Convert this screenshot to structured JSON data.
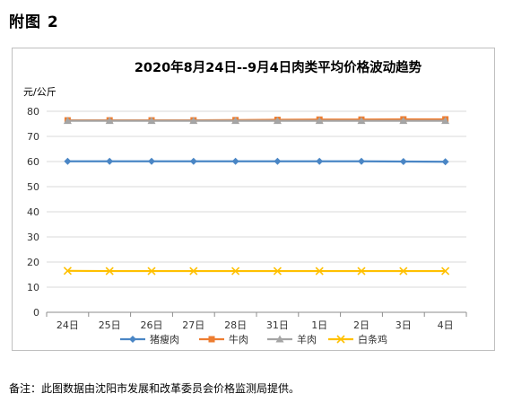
{
  "page": {
    "heading": "附图 2",
    "footnote": "备注：此图数据由沈阳市发展和改革委员会价格监测局提供。"
  },
  "chart_data": {
    "type": "line",
    "title": "2020年8月24日--9月4日肉类平均价格波动趋势",
    "ylabel": "元/公斤",
    "xlabel": "",
    "ylim": [
      0,
      80
    ],
    "yticks": [
      0,
      10,
      20,
      30,
      40,
      50,
      60,
      70,
      80
    ],
    "grid": true,
    "legend_position": "bottom",
    "categories": [
      "24日",
      "25日",
      "26日",
      "27日",
      "28日",
      "31日",
      "1日",
      "2日",
      "3日",
      "4日"
    ],
    "series": [
      {
        "name": "猪瘦肉",
        "color": "#4a86c5",
        "marker": "diamond",
        "values": [
          60.1,
          60.1,
          60.1,
          60.1,
          60.1,
          60.1,
          60.1,
          60.1,
          60.0,
          59.9
        ]
      },
      {
        "name": "牛肉",
        "color": "#ed7d31",
        "marker": "square",
        "values": [
          76.4,
          76.4,
          76.4,
          76.4,
          76.5,
          76.6,
          76.7,
          76.7,
          76.8,
          76.8
        ]
      },
      {
        "name": "羊肉",
        "color": "#a5a5a5",
        "marker": "triangle",
        "values": [
          76.2,
          76.2,
          76.2,
          76.2,
          76.2,
          76.2,
          76.2,
          76.2,
          76.2,
          76.2
        ]
      },
      {
        "name": "白条鸡",
        "color": "#ffc000",
        "marker": "x",
        "values": [
          16.5,
          16.4,
          16.4,
          16.4,
          16.4,
          16.4,
          16.4,
          16.4,
          16.4,
          16.4
        ]
      }
    ]
  }
}
